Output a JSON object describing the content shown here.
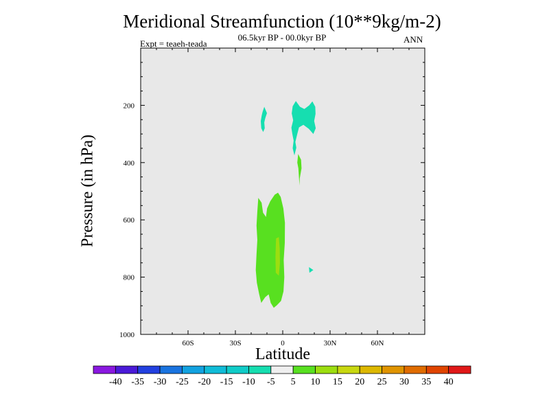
{
  "chart_data": {
    "type": "contour",
    "title": "Meridional Streamfunction (10**9kg/m-2)",
    "subtitle": "06.5kyr BP - 00.0kyr BP",
    "experiment": "Expt = teaeh-teada",
    "season": "ANN",
    "xlabel": "Latitude",
    "ylabel": "Pressure (in hPa)",
    "xlim": [
      -90,
      90
    ],
    "ylim": [
      1000,
      0
    ],
    "x_ticks": [
      {
        "value": -60,
        "label": "60S"
      },
      {
        "value": -30,
        "label": "30S"
      },
      {
        "value": 0,
        "label": "0"
      },
      {
        "value": 30,
        "label": "30N"
      },
      {
        "value": 60,
        "label": "60N"
      }
    ],
    "y_ticks": [
      {
        "value": 200,
        "label": "200"
      },
      {
        "value": 400,
        "label": "400"
      },
      {
        "value": 600,
        "label": "600"
      },
      {
        "value": 800,
        "label": "800"
      },
      {
        "value": 1000,
        "label": "1000"
      }
    ],
    "background_color": "#e8e8e8",
    "colorbar": {
      "levels": [
        -40,
        -35,
        -30,
        -25,
        -20,
        -15,
        -10,
        -5,
        5,
        10,
        15,
        20,
        25,
        30,
        35,
        40
      ],
      "colors": [
        "#8a18e0",
        "#4a1ad8",
        "#2240e0",
        "#1a74e0",
        "#12a2e0",
        "#10bcd8",
        "#10ccc8",
        "#16deb0",
        "#efefef",
        "#58e020",
        "#9cde10",
        "#c8d810",
        "#ddb800",
        "#e09400",
        "#e06c00",
        "#e04400",
        "#e01818"
      ]
    },
    "regions": [
      {
        "label": "-10 to -5",
        "color": "#16deb0",
        "points": [
          [
            -12.8,
            223
          ],
          [
            -11.7,
            205
          ],
          [
            -10.0,
            227
          ],
          [
            -11.1,
            245
          ],
          [
            -11.7,
            260
          ],
          [
            -11.4,
            280
          ],
          [
            -12.4,
            293
          ],
          [
            -13.6,
            280
          ],
          [
            -13.9,
            255
          ],
          [
            -13.3,
            235
          ]
        ]
      },
      {
        "label": "-10 to -5",
        "color": "#16deb0",
        "points": [
          [
            6.6,
            252
          ],
          [
            5.7,
            228
          ],
          [
            6.3,
            203
          ],
          [
            8.3,
            185
          ],
          [
            10.9,
            205
          ],
          [
            13.7,
            213
          ],
          [
            16.8,
            200
          ],
          [
            18.8,
            186
          ],
          [
            20.6,
            205
          ],
          [
            20.8,
            230
          ],
          [
            19.9,
            255
          ],
          [
            20.9,
            280
          ],
          [
            19.4,
            300
          ],
          [
            16.5,
            282
          ],
          [
            13.1,
            268
          ],
          [
            10.3,
            277
          ],
          [
            9.2,
            300
          ],
          [
            8.0,
            328
          ],
          [
            8.6,
            348
          ],
          [
            7.4,
            375
          ],
          [
            6.3,
            350
          ],
          [
            6.9,
            323
          ],
          [
            6.1,
            300
          ],
          [
            5.5,
            278
          ]
        ]
      },
      {
        "label": "5 to 10",
        "color": "#58e020",
        "points": [
          [
            -15.5,
            523
          ],
          [
            -13.4,
            540
          ],
          [
            -12.5,
            575
          ],
          [
            -10.6,
            590
          ],
          [
            -9.9,
            560
          ],
          [
            -7.9,
            535
          ],
          [
            -5.1,
            512
          ],
          [
            -3.0,
            505
          ],
          [
            -1.3,
            520
          ],
          [
            0.4,
            560
          ],
          [
            1.4,
            610
          ],
          [
            1.3,
            680
          ],
          [
            0.6,
            740
          ],
          [
            1.0,
            800
          ],
          [
            0.5,
            850
          ],
          [
            -1.1,
            883
          ],
          [
            -3.7,
            898
          ],
          [
            -5.7,
            907
          ],
          [
            -7.6,
            890
          ],
          [
            -8.9,
            860
          ],
          [
            -11.1,
            870
          ],
          [
            -13.6,
            890
          ],
          [
            -14.9,
            860
          ],
          [
            -16.4,
            820
          ],
          [
            -17.1,
            775
          ],
          [
            -16.6,
            720
          ],
          [
            -16.1,
            670
          ],
          [
            -16.6,
            620
          ],
          [
            -16.1,
            570
          ]
        ]
      },
      {
        "label": "10 to 15",
        "color": "#9cde10",
        "points": [
          [
            -4.2,
            665
          ],
          [
            -2.5,
            660
          ],
          [
            -1.9,
            700
          ],
          [
            -1.8,
            750
          ],
          [
            -2.5,
            795
          ],
          [
            -4.4,
            785
          ],
          [
            -4.6,
            730
          ],
          [
            -4.4,
            690
          ]
        ]
      },
      {
        "label": "5 to 10",
        "color": "#58e020",
        "points": [
          [
            9.8,
            370
          ],
          [
            11.6,
            390
          ],
          [
            11.9,
            420
          ],
          [
            10.8,
            455
          ],
          [
            10.6,
            480
          ],
          [
            9.9,
            420
          ],
          [
            9.2,
            400
          ]
        ]
      },
      {
        "label": "-10 to -5",
        "color": "#16deb0",
        "points": [
          [
            16.6,
            765
          ],
          [
            19.4,
            775
          ],
          [
            16.9,
            785
          ]
        ]
      }
    ]
  }
}
